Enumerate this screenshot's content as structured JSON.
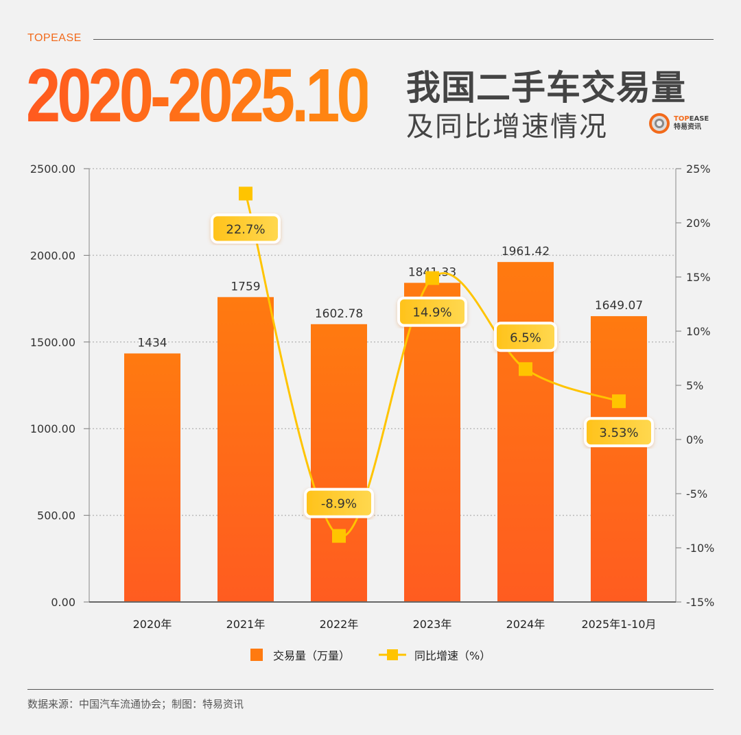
{
  "header": {
    "brand": "TOPEASE",
    "title_main": "2020-2025.10",
    "title_line1": "我国二手车交易量",
    "title_line2": "及同比增速情况",
    "logo_en_a": "TOP",
    "logo_en_b": "EASE",
    "logo_cn": "特易资讯"
  },
  "footer": {
    "source": "数据来源：中国汽车流通协会；制图：特易资讯"
  },
  "colors": {
    "bar": "#ff7a10",
    "bar_bottom": "#ff5c20",
    "line": "#ffc400",
    "label_bg": "#ffcc33",
    "brand": "#f26a1b"
  },
  "chart_data": {
    "type": "bar+line",
    "categories": [
      "2020年",
      "2021年",
      "2022年",
      "2023年",
      "2024年",
      "2025年1-10月"
    ],
    "series": [
      {
        "name": "交易量（万量）",
        "type": "bar",
        "axis": "left",
        "values": [
          1434,
          1759,
          1602.78,
          1841.33,
          1961.42,
          1649.07
        ],
        "labels": [
          "1434",
          "1759",
          "1602.78",
          "1841.33",
          "1961.42",
          "1649.07"
        ]
      },
      {
        "name": "同比增速（%）",
        "type": "line",
        "axis": "right",
        "values": [
          null,
          22.7,
          -8.9,
          14.9,
          6.5,
          3.53
        ],
        "labels": [
          "",
          "22.7%",
          "-8.9%",
          "14.9%",
          "6.5%",
          "3.53%"
        ]
      }
    ],
    "left_axis": {
      "range": [
        0,
        2500
      ],
      "ticks": [
        "0.00",
        "500.00",
        "1000.00",
        "1500.00",
        "2000.00",
        "2500.00"
      ]
    },
    "right_axis": {
      "range": [
        -15,
        25
      ],
      "ticks": [
        "-15%",
        "-10%",
        "-5%",
        "0%",
        "5%",
        "10%",
        "15%",
        "20%",
        "25%"
      ]
    },
    "grid": "horizontal dotted",
    "legend": "bottom-center"
  }
}
